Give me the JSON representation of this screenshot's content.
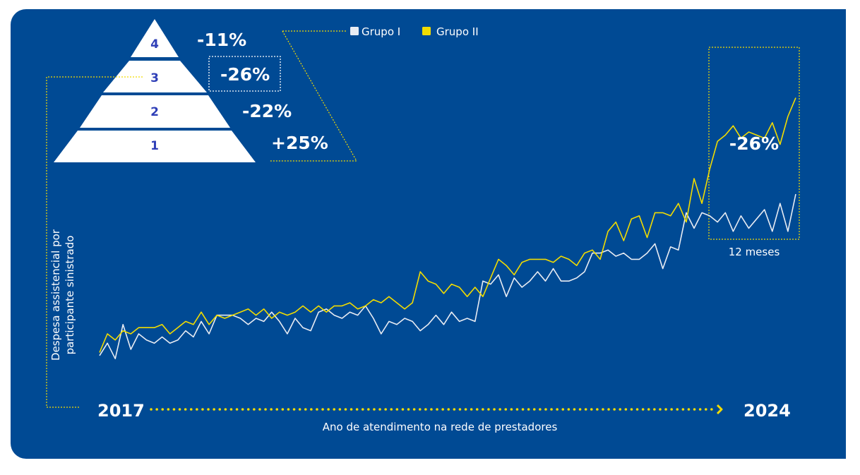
{
  "colors": {
    "background": "#004a94",
    "grupo_i": "#e8ecf3",
    "grupo_ii": "#f2dc00",
    "accent_dotted": "#f2dc00",
    "text": "#ffffff",
    "pyramid_fill": "#ffffff",
    "pyramid_text": "#2f3fb7"
  },
  "pyramid": {
    "levels": [
      {
        "level": "4",
        "change": "-11%"
      },
      {
        "level": "3",
        "change": "-26%",
        "highlighted": true
      },
      {
        "level": "2",
        "change": "-22%"
      },
      {
        "level": "1",
        "change": "+25%"
      }
    ]
  },
  "callout": {
    "change": "-26%",
    "period_label": "12 meses"
  },
  "chart_data": {
    "type": "line",
    "title": "",
    "xlabel": "Ano de atendimento na rede de prestadores",
    "ylabel": "Despesa assistencial por participante sinistrado",
    "x_start_label": "2017",
    "x_end_label": "2024",
    "legend_position": "top",
    "grid": false,
    "ylim": [
      0,
      100
    ],
    "series": [
      {
        "name": "Grupo I",
        "color": "#e8ecf3",
        "values": [
          3,
          7,
          2,
          13,
          5,
          10,
          8,
          7,
          9,
          7,
          8,
          11,
          9,
          14,
          10,
          16,
          16,
          16,
          15,
          13,
          15,
          14,
          17,
          14,
          10,
          15,
          12,
          11,
          17,
          18,
          16,
          15,
          17,
          16,
          19,
          15,
          10,
          14,
          13,
          15,
          14,
          11,
          13,
          16,
          13,
          17,
          14,
          15,
          14,
          27,
          26,
          29,
          22,
          28,
          25,
          27,
          30,
          27,
          31,
          27,
          27,
          28,
          30,
          36,
          36,
          37,
          35,
          36,
          34,
          34,
          36,
          39,
          31,
          38,
          37,
          49,
          44,
          49,
          48,
          46,
          49,
          43,
          48,
          44,
          47,
          50,
          43,
          52,
          43,
          55
        ]
      },
      {
        "name": "Grupo II",
        "color": "#f2dc00",
        "values": [
          4,
          10,
          8,
          11,
          10,
          12,
          12,
          12,
          13,
          10,
          12,
          14,
          13,
          17,
          13,
          16,
          15,
          16,
          17,
          18,
          16,
          18,
          15,
          17,
          16,
          17,
          19,
          17,
          19,
          17,
          19,
          19,
          20,
          18,
          19,
          21,
          20,
          22,
          20,
          18,
          20,
          30,
          27,
          26,
          23,
          26,
          25,
          22,
          25,
          22,
          28,
          34,
          32,
          29,
          33,
          34,
          34,
          34,
          33,
          35,
          34,
          32,
          36,
          37,
          34,
          43,
          46,
          40,
          47,
          48,
          41,
          49,
          49,
          48,
          52,
          46,
          60,
          52,
          63,
          72,
          74,
          77,
          73,
          75,
          74,
          73,
          78,
          71,
          80,
          86
        ]
      }
    ]
  }
}
